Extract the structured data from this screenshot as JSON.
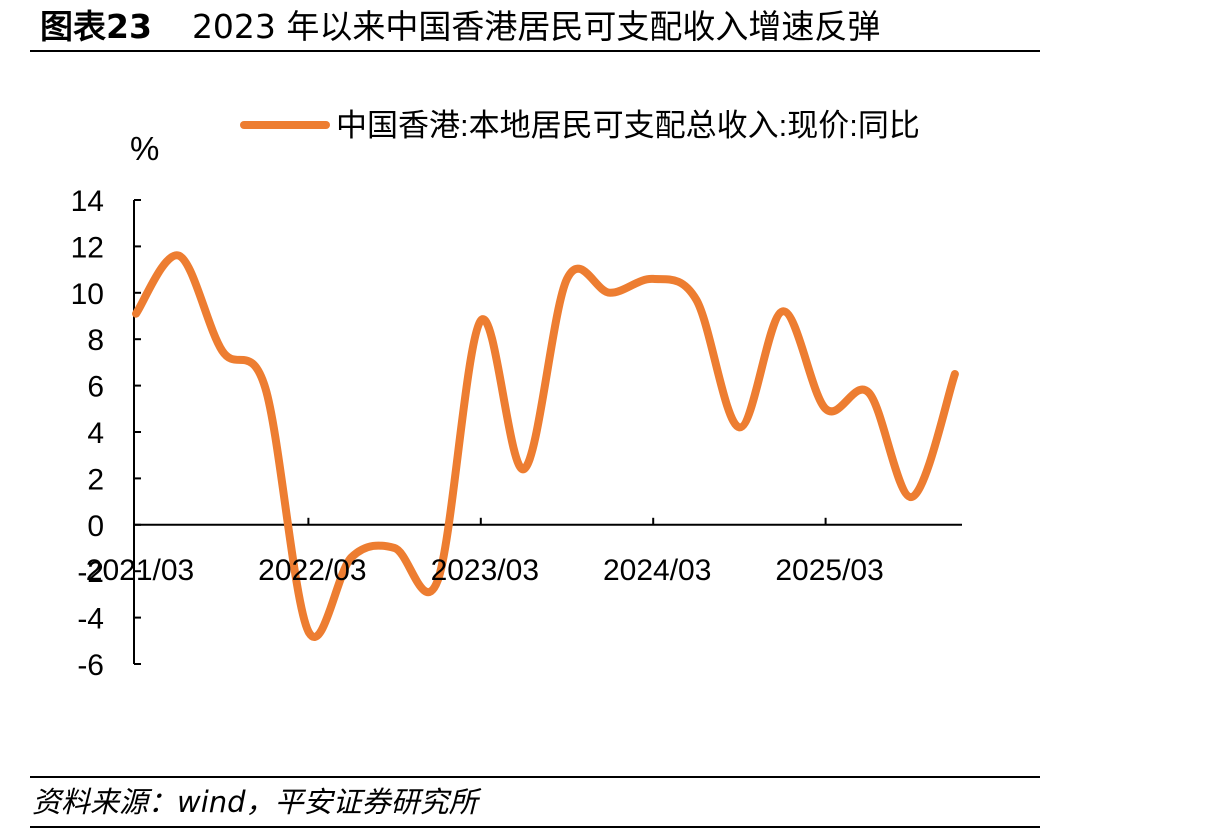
{
  "figure": {
    "label": "图表23",
    "title": "2023 年以来中国香港居民可支配收入增速反弹"
  },
  "source": "资料来源：wind，平安证券研究所",
  "chart_data": {
    "type": "line",
    "ylabel": "%",
    "ylim": [
      -6,
      14
    ],
    "yticks": [
      14,
      12,
      10,
      8,
      6,
      4,
      2,
      0,
      -2,
      -4,
      -6
    ],
    "xtick_labels": [
      "2021/03",
      "2022/03",
      "2023/03",
      "2024/03",
      "2025/03"
    ],
    "legend_position": "top-center",
    "series": [
      {
        "name": "中国香港:本地居民可支配总收入:现价:同比",
        "color": "#ED7D31",
        "x": [
          "2021/03",
          "2021/06",
          "2021/09",
          "2021/12",
          "2022/03",
          "2022/06",
          "2022/09",
          "2022/12",
          "2023/03",
          "2023/06",
          "2023/09",
          "2023/12",
          "2024/03",
          "2024/06",
          "2024/09",
          "2024/12",
          "2025/03",
          "2025/06",
          "2025/09",
          "2025/12"
        ],
        "values": [
          9.1,
          11.6,
          7.5,
          5.9,
          -4.6,
          -1.4,
          -1.0,
          -2.4,
          8.8,
          2.4,
          10.6,
          10.0,
          10.6,
          9.7,
          4.2,
          9.2,
          5.0,
          5.7,
          1.2,
          6.5
        ]
      }
    ]
  }
}
